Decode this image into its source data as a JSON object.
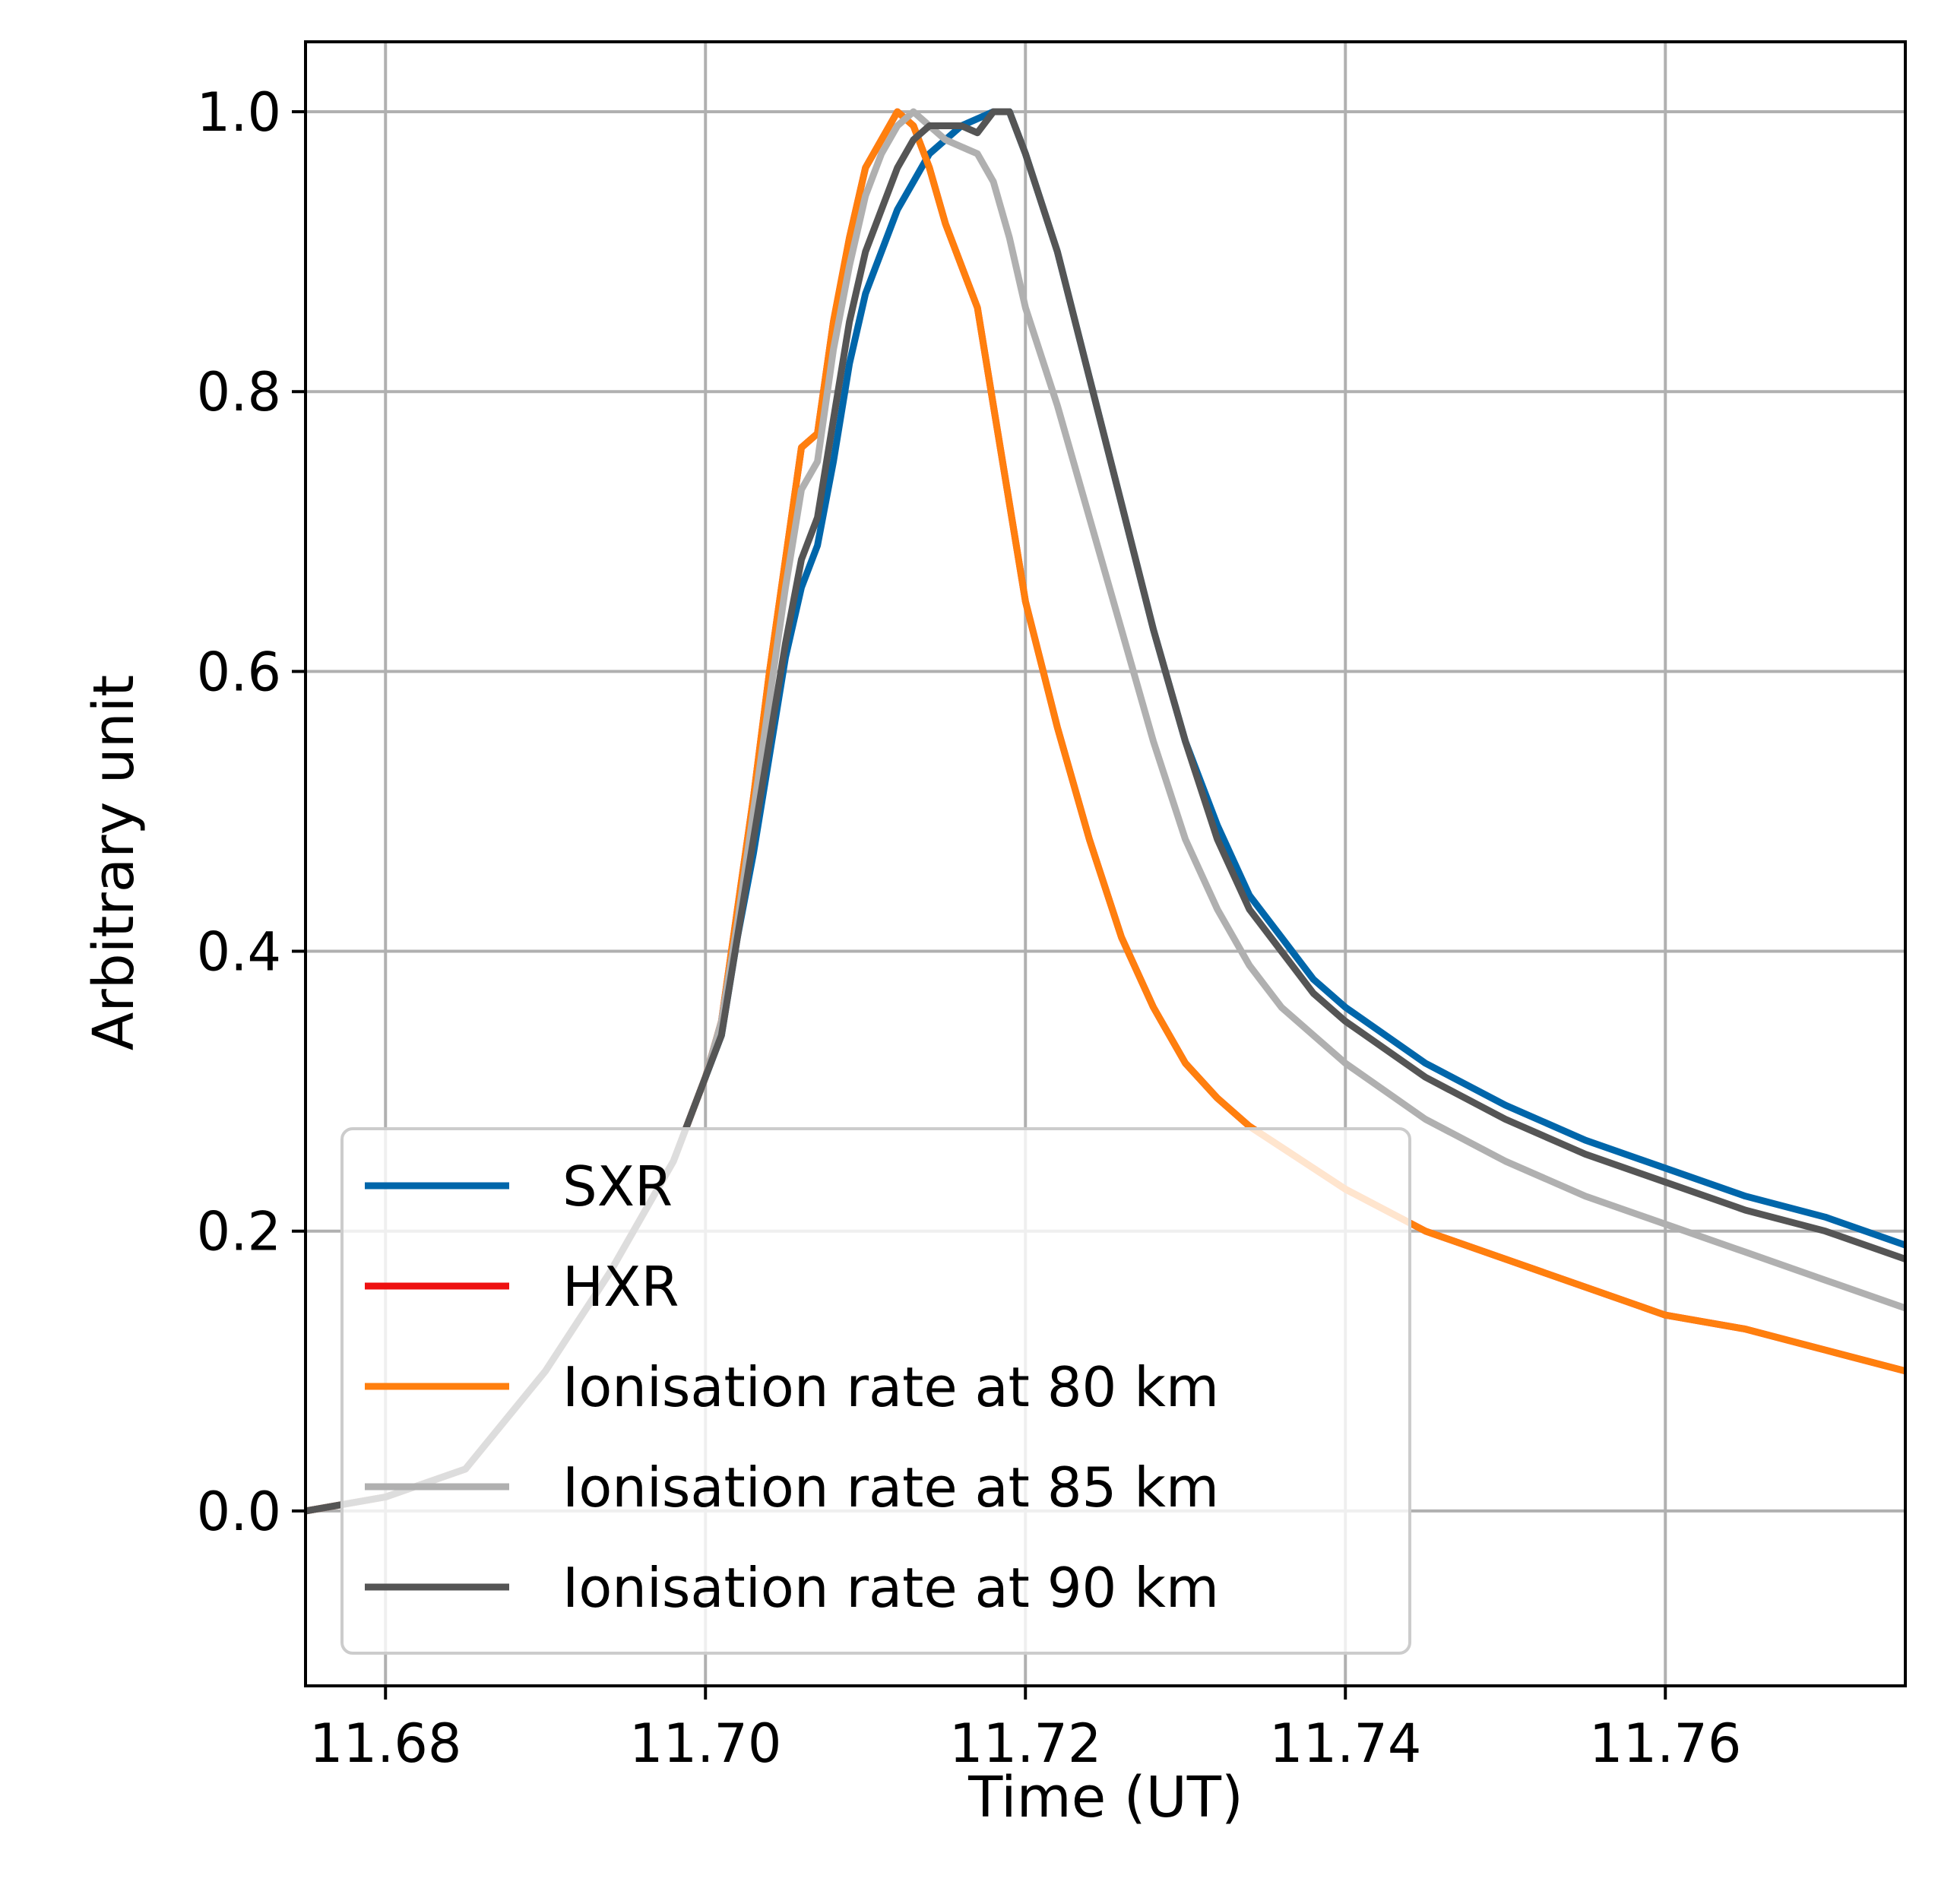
{
  "chart_data": {
    "type": "line",
    "title": "",
    "xlabel": "Time (UT)",
    "ylabel": "Arbitrary unit",
    "xlim": [
      11.675,
      11.775
    ],
    "ylim": [
      -0.125,
      1.05
    ],
    "xticks": [
      11.68,
      11.7,
      11.72,
      11.74,
      11.76
    ],
    "xtick_labels": [
      "11.68",
      "11.70",
      "11.72",
      "11.74",
      "11.76"
    ],
    "yticks": [
      0.0,
      0.2,
      0.4,
      0.6,
      0.8,
      1.0
    ],
    "ytick_labels": [
      "0.0",
      "0.2",
      "0.4",
      "0.6",
      "0.8",
      "1.0"
    ],
    "grid": true,
    "legend_position": "lower-left",
    "series": [
      {
        "name": "SXR",
        "color": "#0066aa",
        "x": [
          11.675,
          11.68,
          11.685,
          11.69,
          11.694,
          11.698,
          11.7,
          11.701,
          11.702,
          11.703,
          11.704,
          11.705,
          11.706,
          11.707,
          11.708,
          11.709,
          11.71,
          11.711,
          11.712,
          11.713,
          11.714,
          11.715,
          11.716,
          11.717,
          11.718,
          11.719,
          11.72,
          11.722,
          11.724,
          11.726,
          11.728,
          11.73,
          11.732,
          11.734,
          11.736,
          11.738,
          11.74,
          11.745,
          11.75,
          11.755,
          11.76,
          11.765,
          11.77,
          11.775
        ],
        "y": [
          0.0,
          0.01,
          0.03,
          0.1,
          0.17,
          0.25,
          0.31,
          0.34,
          0.41,
          0.47,
          0.54,
          0.61,
          0.66,
          0.69,
          0.75,
          0.82,
          0.87,
          0.9,
          0.93,
          0.95,
          0.97,
          0.98,
          0.99,
          0.995,
          1.0,
          1.0,
          0.97,
          0.9,
          0.81,
          0.72,
          0.63,
          0.55,
          0.49,
          0.44,
          0.41,
          0.38,
          0.36,
          0.32,
          0.29,
          0.265,
          0.245,
          0.225,
          0.21,
          0.19
        ]
      },
      {
        "name": "HXR",
        "color": "#ee1111",
        "x": [
          11.675,
          11.68,
          11.685,
          11.69,
          11.694,
          11.698,
          11.7,
          11.701,
          11.702,
          11.703,
          11.704,
          11.705,
          11.706,
          11.707,
          11.708,
          11.709,
          11.71,
          11.711,
          11.712,
          11.713,
          11.714,
          11.715,
          11.716,
          11.717,
          11.718,
          11.719,
          11.72,
          11.722,
          11.724,
          11.726,
          11.728,
          11.73,
          11.732,
          11.734,
          11.736,
          11.738,
          11.74,
          11.745,
          11.75,
          11.755,
          11.76,
          11.765,
          11.77,
          11.775
        ],
        "y": [
          0.0,
          0.01,
          0.03,
          0.1,
          0.17,
          0.25,
          0.31,
          0.35,
          0.43,
          0.51,
          0.6,
          0.68,
          0.76,
          0.77,
          0.85,
          0.91,
          0.96,
          0.98,
          1.0,
          0.99,
          0.96,
          0.92,
          0.89,
          0.86,
          0.79,
          0.72,
          0.65,
          0.56,
          0.48,
          0.41,
          0.36,
          0.32,
          0.295,
          0.275,
          0.26,
          0.245,
          0.23,
          0.2,
          0.18,
          0.16,
          0.14,
          0.13,
          0.115,
          0.1
        ]
      },
      {
        "name": "Ionisation rate at 80 km",
        "color": "#ff7f0e",
        "x": [
          11.675,
          11.68,
          11.685,
          11.69,
          11.694,
          11.698,
          11.7,
          11.701,
          11.702,
          11.703,
          11.704,
          11.705,
          11.706,
          11.707,
          11.708,
          11.709,
          11.71,
          11.711,
          11.712,
          11.713,
          11.714,
          11.715,
          11.716,
          11.717,
          11.718,
          11.719,
          11.72,
          11.722,
          11.724,
          11.726,
          11.728,
          11.73,
          11.732,
          11.734,
          11.736,
          11.738,
          11.74,
          11.745,
          11.75,
          11.755,
          11.76,
          11.765,
          11.77,
          11.775
        ],
        "y": [
          0.0,
          0.01,
          0.03,
          0.1,
          0.17,
          0.25,
          0.31,
          0.35,
          0.43,
          0.51,
          0.6,
          0.68,
          0.76,
          0.77,
          0.85,
          0.91,
          0.96,
          0.98,
          1.0,
          0.99,
          0.96,
          0.92,
          0.89,
          0.86,
          0.79,
          0.72,
          0.65,
          0.56,
          0.48,
          0.41,
          0.36,
          0.32,
          0.295,
          0.275,
          0.26,
          0.245,
          0.23,
          0.2,
          0.18,
          0.16,
          0.14,
          0.13,
          0.115,
          0.1
        ]
      },
      {
        "name": "Ionisation rate at 85 km",
        "color": "#b0b0b0",
        "x": [
          11.675,
          11.68,
          11.685,
          11.69,
          11.694,
          11.698,
          11.7,
          11.701,
          11.702,
          11.703,
          11.704,
          11.705,
          11.706,
          11.707,
          11.708,
          11.709,
          11.71,
          11.711,
          11.712,
          11.713,
          11.714,
          11.715,
          11.716,
          11.717,
          11.718,
          11.719,
          11.72,
          11.722,
          11.724,
          11.726,
          11.728,
          11.73,
          11.732,
          11.734,
          11.736,
          11.738,
          11.74,
          11.745,
          11.75,
          11.755,
          11.76,
          11.765,
          11.77,
          11.775
        ],
        "y": [
          0.0,
          0.01,
          0.03,
          0.1,
          0.17,
          0.25,
          0.31,
          0.35,
          0.42,
          0.5,
          0.58,
          0.66,
          0.73,
          0.75,
          0.83,
          0.89,
          0.94,
          0.97,
          0.99,
          1.0,
          0.99,
          0.98,
          0.975,
          0.97,
          0.95,
          0.91,
          0.86,
          0.79,
          0.71,
          0.63,
          0.55,
          0.48,
          0.43,
          0.39,
          0.36,
          0.34,
          0.32,
          0.28,
          0.25,
          0.225,
          0.205,
          0.185,
          0.165,
          0.145
        ]
      },
      {
        "name": "Ionisation rate at 90 km",
        "color": "#555555",
        "x": [
          11.675,
          11.68,
          11.685,
          11.69,
          11.694,
          11.698,
          11.7,
          11.701,
          11.702,
          11.703,
          11.704,
          11.705,
          11.706,
          11.707,
          11.708,
          11.709,
          11.71,
          11.711,
          11.712,
          11.713,
          11.714,
          11.715,
          11.716,
          11.717,
          11.718,
          11.719,
          11.72,
          11.722,
          11.724,
          11.726,
          11.728,
          11.73,
          11.732,
          11.734,
          11.736,
          11.738,
          11.74,
          11.745,
          11.75,
          11.755,
          11.76,
          11.765,
          11.77,
          11.775
        ],
        "y": [
          0.0,
          0.01,
          0.03,
          0.1,
          0.17,
          0.25,
          0.31,
          0.34,
          0.41,
          0.48,
          0.55,
          0.62,
          0.68,
          0.71,
          0.78,
          0.85,
          0.9,
          0.93,
          0.96,
          0.98,
          0.99,
          0.99,
          0.99,
          0.985,
          1.0,
          1.0,
          0.97,
          0.9,
          0.81,
          0.72,
          0.63,
          0.55,
          0.48,
          0.43,
          0.4,
          0.37,
          0.35,
          0.31,
          0.28,
          0.255,
          0.235,
          0.215,
          0.2,
          0.18
        ]
      }
    ]
  }
}
